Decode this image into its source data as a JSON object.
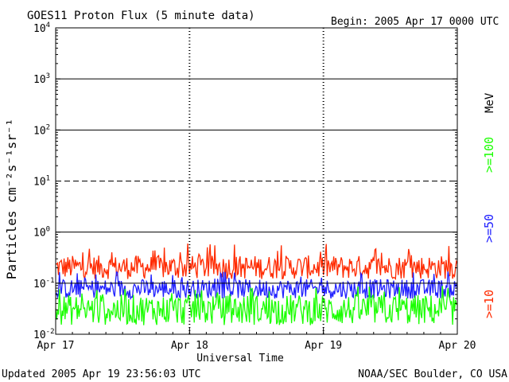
{
  "chart_data": {
    "type": "line",
    "title": "GOES11 Proton Flux (5 minute data)",
    "begin_label": "Begin: 2005 Apr 17 0000 UTC",
    "xlabel": "Universal Time",
    "ylabel": "Particles cm⁻²s⁻¹sr⁻¹",
    "y_scale": "log",
    "ylim": [
      0.01,
      10000
    ],
    "y_ticks": [
      {
        "base": "10",
        "exp": "-2",
        "value": 0.01
      },
      {
        "base": "10",
        "exp": "-1",
        "value": 0.1
      },
      {
        "base": "10",
        "exp": "0",
        "value": 1
      },
      {
        "base": "10",
        "exp": "1",
        "value": 10
      },
      {
        "base": "10",
        "exp": "2",
        "value": 100
      },
      {
        "base": "10",
        "exp": "3",
        "value": 1000
      },
      {
        "base": "10",
        "exp": "4",
        "value": 10000
      }
    ],
    "x_ticks": [
      "Apr 17",
      "Apr 18",
      "Apr 19",
      "Apr 20"
    ],
    "xlim_days": [
      0,
      3
    ],
    "threshold_lines": [
      {
        "value": 10,
        "style": "dashed"
      },
      {
        "value": 1,
        "style": "solid"
      }
    ],
    "legend_unit": "MeV",
    "series": [
      {
        "name": ">=10",
        "color": "#ff2a00",
        "typical_range": [
          0.12,
          0.35
        ],
        "peak": 0.6
      },
      {
        "name": ">=50",
        "color": "#2020ff",
        "typical_range": [
          0.05,
          0.12
        ],
        "peak": 0.17
      },
      {
        "name": ">=100",
        "color": "#1aff00",
        "typical_range": [
          0.015,
          0.06
        ],
        "peak": 0.09
      }
    ]
  },
  "footer": {
    "updated": "Updated 2005 Apr 19 23:56:03 UTC",
    "credit": "NOAA/SEC Boulder, CO USA"
  }
}
